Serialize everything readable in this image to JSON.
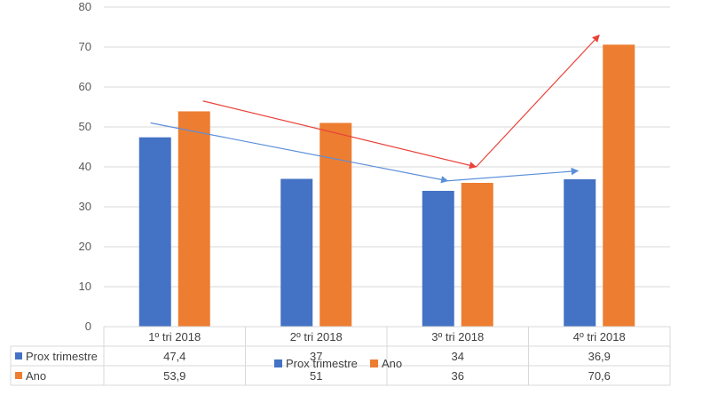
{
  "chart_data": {
    "type": "bar",
    "categories": [
      "1º tri 2018",
      "2º tri 2018",
      "3º tri 2018",
      "4º tri 2018"
    ],
    "series": [
      {
        "name": "Prox trimestre",
        "values": [
          47.4,
          37,
          34,
          36.9
        ],
        "labels": [
          "47,4",
          "37",
          "34",
          "36,9"
        ],
        "color": "#4472C4"
      },
      {
        "name": "Ano",
        "values": [
          53.9,
          51,
          36,
          70.6
        ],
        "labels": [
          "53,9",
          "51",
          "36",
          "70,6"
        ],
        "color": "#ED7D31"
      }
    ],
    "y_ticks": [
      "0",
      "10",
      "20",
      "30",
      "40",
      "50",
      "60",
      "70",
      "80"
    ],
    "ylim": [
      0,
      80
    ],
    "grid": true,
    "legend_position": "bottom",
    "data_table": true,
    "annotations": [
      {
        "type": "arrow",
        "color": "#5B8FD9",
        "points": [
          [
            "1º tri 2018",
            51
          ],
          [
            "3º tri 2018",
            36.5
          ],
          [
            "4º tri 2018",
            39
          ]
        ]
      },
      {
        "type": "arrow",
        "color": "#E8423A",
        "points": [
          [
            "1º tri 2018",
            56.5
          ],
          [
            "3º tri 2018",
            40
          ],
          [
            "4º tri 2018",
            73
          ]
        ]
      }
    ]
  }
}
